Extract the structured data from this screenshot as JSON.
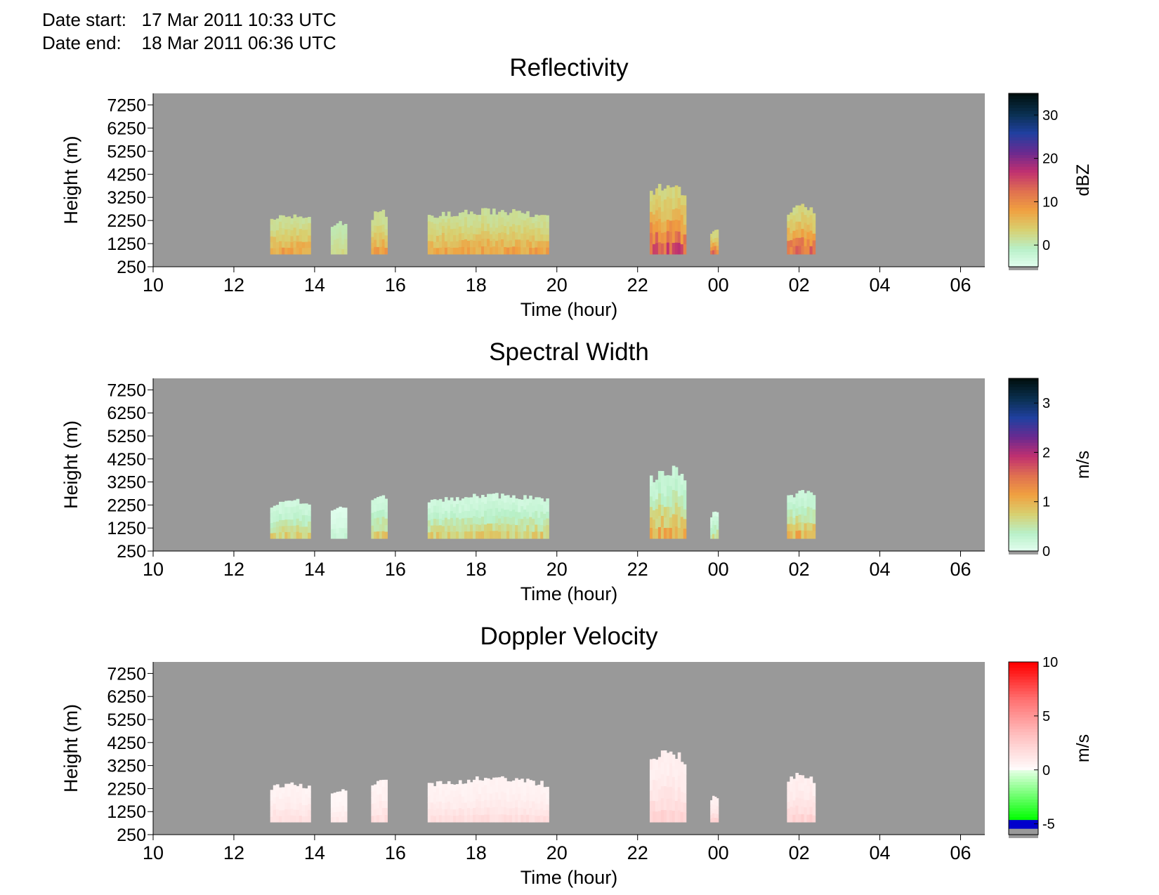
{
  "header": {
    "date_start_label": "Date start:",
    "date_start_value": "17 Mar 2011 10:33 UTC",
    "date_end_label": "Date end:",
    "date_end_value": "18 Mar 2011 06:36 UTC"
  },
  "colors": {
    "background_no_data": "#999999",
    "reflectivity_scale": [
      "#e6fff2",
      "#b8f0c8",
      "#d8d070",
      "#f0a040",
      "#e07050",
      "#c03070",
      "#6a2a90",
      "#2040a0",
      "#0a3050",
      "#001010"
    ],
    "spectral_width_scale": [
      "#e6fff2",
      "#b8f0c8",
      "#d8d070",
      "#f0a040",
      "#e07050",
      "#c03070",
      "#6a2a90",
      "#2040a0",
      "#0a3050",
      "#001010"
    ],
    "doppler_positive_scale": [
      "#ffffff",
      "#ffc0c0",
      "#ff7070",
      "#ff0000"
    ],
    "doppler_negative_scale": [
      "#e0ffe0",
      "#00ff00",
      "#0000cc"
    ]
  },
  "chart_data": [
    {
      "type": "heatmap",
      "title": "Reflectivity",
      "xlabel": "Time (hour)",
      "ylabel": "Height (m)",
      "x_ticks": [
        "10",
        "12",
        "14",
        "16",
        "18",
        "20",
        "22",
        "00",
        "02",
        "04",
        "06"
      ],
      "y_ticks": [
        "7250",
        "6250",
        "5250",
        "4250",
        "3250",
        "2250",
        "1250",
        "250"
      ],
      "xlim_hours": [
        10.0,
        30.6
      ],
      "ylim_m": [
        250,
        7750
      ],
      "colorbar": {
        "label": "dBZ",
        "ticks": [
          "30",
          "20",
          "10",
          "0"
        ],
        "range": [
          -5,
          35
        ],
        "tick_values": [
          30,
          20,
          10,
          0
        ]
      },
      "regions": [
        {
          "start": 12.9,
          "end": 13.9,
          "top": 2600,
          "peak": 12
        },
        {
          "start": 14.4,
          "end": 14.8,
          "top": 2300,
          "peak": 4
        },
        {
          "start": 15.4,
          "end": 15.8,
          "top": 2800,
          "peak": 12
        },
        {
          "start": 16.8,
          "end": 19.8,
          "top": 2800,
          "peak": 12
        },
        {
          "start": 22.3,
          "end": 23.2,
          "top": 4000,
          "peak": 22
        },
        {
          "start": 23.8,
          "end": 24.0,
          "top": 2000,
          "peak": 18
        },
        {
          "start": 25.7,
          "end": 26.4,
          "top": 3000,
          "peak": 20
        }
      ]
    },
    {
      "type": "heatmap",
      "title": "Spectral Width",
      "xlabel": "Time (hour)",
      "ylabel": "Height (m)",
      "x_ticks": [
        "10",
        "12",
        "14",
        "16",
        "18",
        "20",
        "22",
        "00",
        "02",
        "04",
        "06"
      ],
      "y_ticks": [
        "7250",
        "6250",
        "5250",
        "4250",
        "3250",
        "2250",
        "1250",
        "250"
      ],
      "xlim_hours": [
        10.0,
        30.6
      ],
      "ylim_m": [
        250,
        7750
      ],
      "colorbar": {
        "label": "m/s",
        "ticks": [
          "3",
          "2",
          "1",
          "0"
        ],
        "range": [
          0,
          3.5
        ],
        "tick_values": [
          3,
          2,
          1,
          0
        ]
      },
      "regions": [
        {
          "start": 12.9,
          "end": 13.9,
          "top": 2600,
          "peak": 1.2
        },
        {
          "start": 14.4,
          "end": 14.8,
          "top": 2300,
          "peak": 0.4
        },
        {
          "start": 15.4,
          "end": 15.8,
          "top": 2800,
          "peak": 1.2
        },
        {
          "start": 16.8,
          "end": 19.8,
          "top": 2800,
          "peak": 1.2
        },
        {
          "start": 22.3,
          "end": 23.2,
          "top": 4000,
          "peak": 1.6
        },
        {
          "start": 23.8,
          "end": 24.0,
          "top": 2000,
          "peak": 1.0
        },
        {
          "start": 25.7,
          "end": 26.4,
          "top": 3000,
          "peak": 1.5
        }
      ]
    },
    {
      "type": "heatmap",
      "title": "Doppler Velocity",
      "xlabel": "Time (hour)",
      "ylabel": "Height (m)",
      "x_ticks": [
        "10",
        "12",
        "14",
        "16",
        "18",
        "20",
        "22",
        "00",
        "02",
        "04",
        "06"
      ],
      "y_ticks": [
        "7250",
        "6250",
        "5250",
        "4250",
        "3250",
        "2250",
        "1250",
        "250"
      ],
      "xlim_hours": [
        10.0,
        30.6
      ],
      "ylim_m": [
        250,
        7750
      ],
      "colorbar": {
        "label": "m/s",
        "ticks": [
          "10",
          "5",
          "0",
          "-5"
        ],
        "range": [
          -6,
          10
        ],
        "tick_values": [
          10,
          5,
          0,
          -5
        ]
      },
      "regions": [
        {
          "start": 12.9,
          "end": 13.9,
          "top": 2600,
          "peak": 3
        },
        {
          "start": 14.4,
          "end": 14.8,
          "top": 2300,
          "peak": 2
        },
        {
          "start": 15.4,
          "end": 15.8,
          "top": 2800,
          "peak": 3
        },
        {
          "start": 16.8,
          "end": 19.8,
          "top": 2800,
          "peak": 3
        },
        {
          "start": 22.3,
          "end": 23.2,
          "top": 4000,
          "peak": 4
        },
        {
          "start": 23.8,
          "end": 24.0,
          "top": 2000,
          "peak": 4
        },
        {
          "start": 25.7,
          "end": 26.4,
          "top": 3000,
          "peak": 4
        }
      ]
    }
  ]
}
